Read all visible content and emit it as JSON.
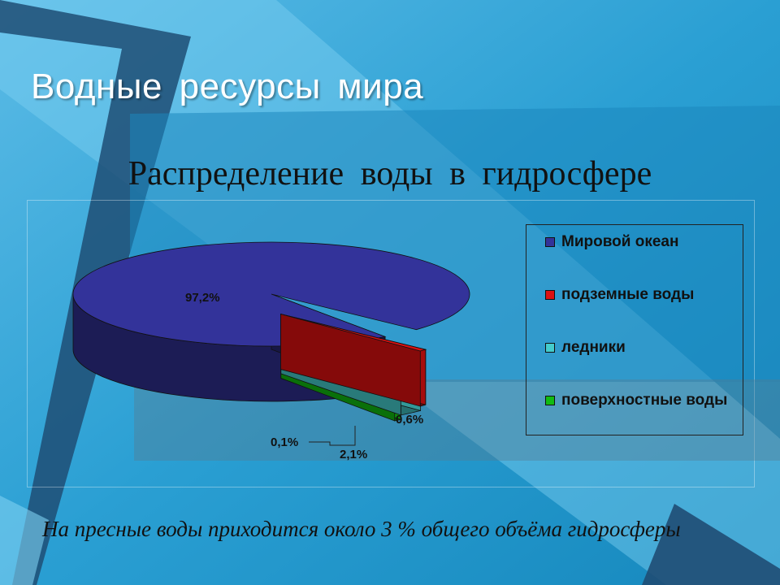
{
  "slide": {
    "title": "Водные ресурсы мира",
    "footnote": "На пресные воды приходится около 3 % общего объёма гидросферы",
    "colors": {
      "background": "#1c8fc2",
      "light": "#63c3ee",
      "dark": "#1a4a73"
    }
  },
  "chart_data": {
    "type": "pie",
    "title": "Распределение воды в гидросфере",
    "legend_position": "right",
    "exploded": true,
    "three_d": true,
    "slices": [
      {
        "name": "Мировой океан",
        "value": 97.2,
        "label": "97,2%",
        "color": "#33339a"
      },
      {
        "name": "подземные воды",
        "value": 0.6,
        "label": "0,6%",
        "color": "#dd1111"
      },
      {
        "name": "ледники",
        "value": 2.1,
        "label": "2,1%",
        "color": "#44cccc"
      },
      {
        "name": "поверхностные воды",
        "value": 0.1,
        "label": "0,1%",
        "color": "#11bb11"
      }
    ]
  }
}
